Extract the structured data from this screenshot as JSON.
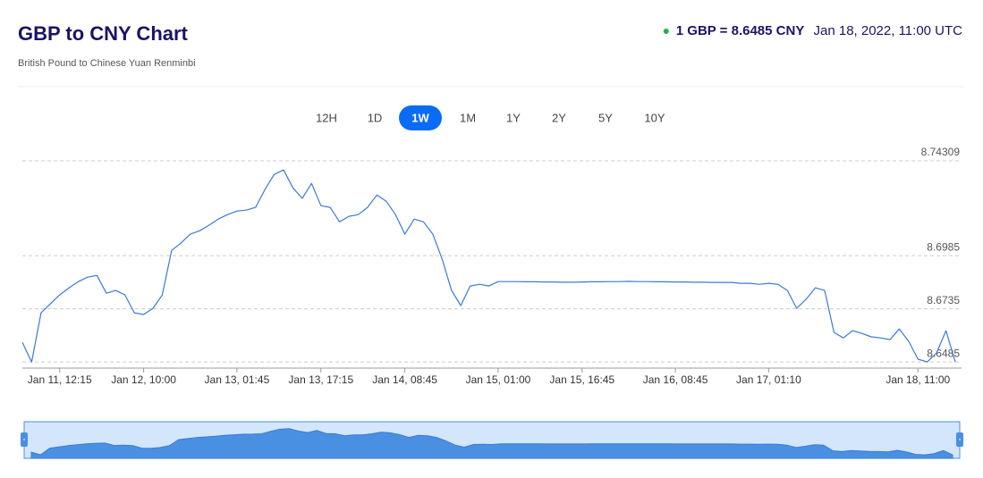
{
  "chart_data": {
    "type": "line",
    "title": "GBP to CNY Chart",
    "subtitle": "British Pound to Chinese Yuan Renminbi",
    "categories": [
      null,
      null,
      null,
      null,
      "Jan 11, 12:15",
      null,
      null,
      null,
      null,
      null,
      null,
      null,
      null,
      "Jan 12, 10:00",
      null,
      null,
      null,
      null,
      null,
      null,
      null,
      null,
      null,
      "Jan 13, 01:45",
      null,
      null,
      null,
      null,
      null,
      null,
      null,
      null,
      "Jan 13, 17:15",
      null,
      null,
      null,
      null,
      null,
      null,
      null,
      null,
      "Jan 14, 08:45",
      null,
      null,
      null,
      null,
      null,
      null,
      null,
      null,
      null,
      "Jan 15, 01:00",
      null,
      null,
      null,
      null,
      null,
      null,
      null,
      null,
      "Jan 15, 16:45",
      null,
      null,
      null,
      null,
      null,
      null,
      null,
      null,
      null,
      "Jan 16, 08:45",
      null,
      null,
      null,
      null,
      null,
      null,
      null,
      null,
      null,
      "Jan 17, 01:10",
      null,
      null,
      null,
      null,
      null,
      null,
      null,
      null,
      null,
      null,
      null,
      null,
      null,
      null,
      null,
      "Jan 18, 11:00",
      null,
      null,
      null,
      null
    ],
    "series": [
      {
        "name": "GBP/CNY",
        "color": "#3a7bd5",
        "values": [
          8.6577,
          8.6485,
          8.6716,
          8.6758,
          8.68,
          8.6834,
          8.6863,
          8.6884,
          8.6892,
          8.6808,
          8.6821,
          8.68,
          8.6716,
          8.6708,
          8.6737,
          8.68,
          8.701,
          8.7044,
          8.7086,
          8.7102,
          8.7128,
          8.7157,
          8.7178,
          8.7195,
          8.7199,
          8.7212,
          8.7296,
          8.7367,
          8.7388,
          8.7304,
          8.7254,
          8.7325,
          8.722,
          8.7212,
          8.7144,
          8.717,
          8.7178,
          8.7212,
          8.727,
          8.7241,
          8.7178,
          8.7086,
          8.7157,
          8.7144,
          8.7086,
          8.6968,
          8.6821,
          8.675,
          8.6842,
          8.685,
          8.6842,
          8.6863,
          8.6863,
          8.6863,
          8.6862,
          8.6862,
          8.6861,
          8.6861,
          8.686,
          8.686,
          8.6861,
          8.6862,
          8.6862,
          8.6863,
          8.6863,
          8.6864,
          8.6863,
          8.6863,
          8.6862,
          8.6862,
          8.6861,
          8.6861,
          8.686,
          8.686,
          8.6859,
          8.6859,
          8.6859,
          8.6855,
          8.6855,
          8.685,
          8.6855,
          8.685,
          8.6821,
          8.6737,
          8.6779,
          8.6834,
          8.6821,
          8.6624,
          8.6598,
          8.6632,
          8.6619,
          8.6603,
          8.6598,
          8.659,
          8.664,
          8.6582,
          8.6498,
          8.6485,
          8.6527,
          8.6632,
          8.6485
        ]
      }
    ],
    "ylim": [
      8.6456,
      8.7473
    ],
    "yticks": [
      8.6485,
      8.6735,
      8.6985,
      8.74309
    ],
    "grid": true,
    "ranges": [
      "12H",
      "1D",
      "1W",
      "1M",
      "1Y",
      "2Y",
      "5Y",
      "10Y"
    ],
    "selected_range": "1W"
  },
  "quote": {
    "rate": "1 GBP = 8.6485 CNY",
    "timestamp": "Jan 18, 2022, 11:00 UTC"
  }
}
